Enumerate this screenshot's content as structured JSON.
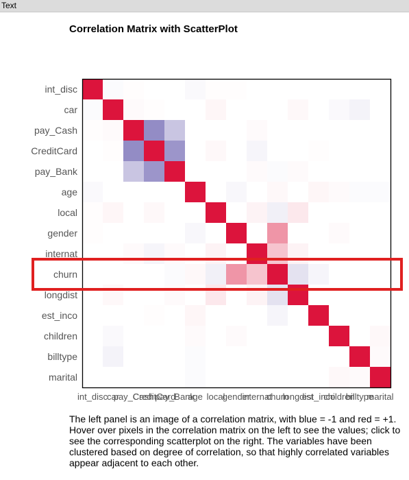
{
  "tab": {
    "label": "Text"
  },
  "chart_data": {
    "type": "heatmap",
    "title": "Correlation Matrix with ScatterPlot",
    "variables": [
      "int_disc",
      "car",
      "pay_Cash",
      "CreditCard",
      "pay_Bank",
      "age",
      "local",
      "gender",
      "internat",
      "churn",
      "longdist",
      "est_inco",
      "children",
      "billtype",
      "marital"
    ],
    "color_scale": {
      "min": -1,
      "max": 1,
      "low_color": "#4b3f9e",
      "mid_color": "#ffffff",
      "high_color": "#dc143c"
    },
    "highlighted_row": "churn",
    "highlight_color": "#e02020",
    "values": [
      [
        1.0,
        -0.02,
        0.01,
        0.0,
        0.0,
        -0.03,
        0.01,
        0.01,
        0.0,
        0.0,
        0.0,
        0.0,
        0.0,
        0.0,
        0.0
      ],
      [
        -0.02,
        1.0,
        0.02,
        0.01,
        0.0,
        0.0,
        0.04,
        0.0,
        0.0,
        0.0,
        0.03,
        0.0,
        -0.03,
        -0.06,
        0.0
      ],
      [
        0.01,
        0.02,
        1.0,
        -0.6,
        -0.3,
        0.0,
        0.0,
        0.0,
        0.02,
        0.0,
        0.0,
        0.0,
        0.0,
        0.0,
        0.0
      ],
      [
        0.0,
        0.01,
        -0.6,
        1.0,
        -0.55,
        0.0,
        0.03,
        0.0,
        -0.05,
        0.0,
        0.0,
        0.01,
        0.0,
        0.0,
        0.0
      ],
      [
        0.0,
        0.0,
        -0.3,
        -0.55,
        1.0,
        0.0,
        0.0,
        0.0,
        0.02,
        -0.02,
        0.02,
        0.0,
        0.0,
        0.0,
        0.0
      ],
      [
        -0.03,
        0.0,
        0.0,
        0.0,
        0.0,
        1.0,
        0.0,
        -0.04,
        0.0,
        0.03,
        0.0,
        0.04,
        0.02,
        -0.02,
        -0.02
      ],
      [
        0.01,
        0.04,
        0.0,
        0.03,
        0.0,
        0.0,
        1.0,
        0.0,
        0.05,
        -0.08,
        0.1,
        0.0,
        0.0,
        0.0,
        0.0
      ],
      [
        0.01,
        0.0,
        0.0,
        0.0,
        0.0,
        -0.04,
        0.0,
        1.0,
        0.0,
        0.45,
        0.0,
        0.0,
        0.02,
        0.0,
        0.0
      ],
      [
        0.0,
        0.0,
        0.02,
        -0.05,
        0.02,
        0.0,
        0.05,
        0.0,
        1.0,
        0.25,
        0.05,
        0.0,
        0.0,
        0.0,
        0.0
      ],
      [
        0.0,
        0.0,
        0.0,
        0.0,
        -0.02,
        0.03,
        -0.08,
        0.45,
        0.25,
        1.0,
        -0.15,
        -0.05,
        0.0,
        0.0,
        0.0
      ],
      [
        0.0,
        0.03,
        0.0,
        0.0,
        0.02,
        0.0,
        0.1,
        0.0,
        0.05,
        -0.15,
        1.0,
        0.0,
        0.0,
        0.0,
        0.0
      ],
      [
        0.0,
        0.0,
        0.0,
        0.01,
        0.0,
        0.04,
        0.0,
        0.0,
        0.0,
        -0.05,
        0.0,
        1.0,
        0.0,
        0.0,
        0.0
      ],
      [
        0.0,
        -0.03,
        0.0,
        0.0,
        0.0,
        0.02,
        0.0,
        0.02,
        0.0,
        0.0,
        0.0,
        0.0,
        1.0,
        0.0,
        0.03
      ],
      [
        0.0,
        -0.06,
        0.0,
        0.0,
        0.0,
        -0.02,
        0.0,
        0.0,
        0.0,
        0.0,
        0.0,
        0.0,
        0.0,
        1.0,
        0.02
      ],
      [
        0.0,
        0.0,
        0.0,
        0.0,
        0.0,
        -0.02,
        0.0,
        0.0,
        0.0,
        0.0,
        0.0,
        0.0,
        0.03,
        0.02,
        1.0
      ]
    ]
  },
  "caption": "The left panel is an image of a correlation matrix, with blue = -1 and red = +1. Hover over pixels in the correlation matrix on the left to see the values; click to see the corresponding scatterplot on the right. The variables have been clustered based on degree of correlation, so that highly correlated variables appear adjacent to each other."
}
